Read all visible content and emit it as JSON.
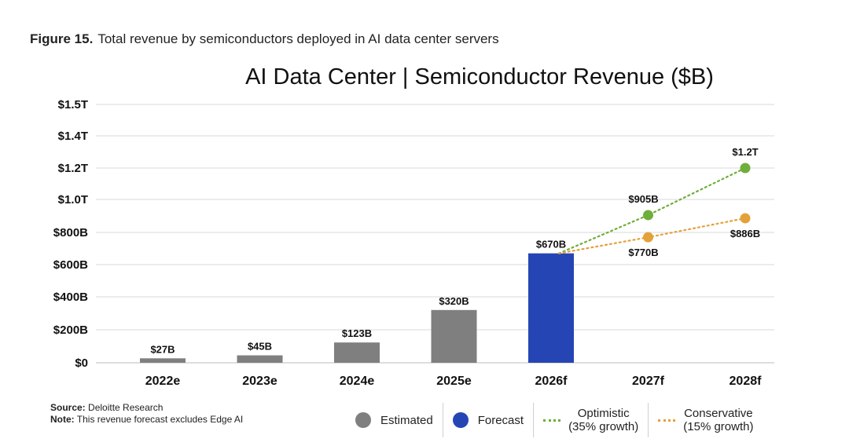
{
  "caption": {
    "figure_number": "Figure 15.",
    "text": "Total revenue by semiconductors deployed in AI data center servers"
  },
  "footnotes": {
    "source_label": "Source:",
    "source_text": "Deloitte Research",
    "note_label": "Note:",
    "note_text": "This revenue forecast excludes Edge AI"
  },
  "legend": {
    "estimated": "Estimated",
    "forecast": "Forecast",
    "optimistic_line1": "Optimistic",
    "optimistic_line2": "(35% growth)",
    "conservative_line1": "Conservative",
    "conservative_line2": "(15% growth)"
  },
  "colors": {
    "estimated": "#7f7f80",
    "forecast": "#2645b5",
    "optimistic": "#6fae3a",
    "conservative": "#e3a13a",
    "grid": "#d9d9d9"
  },
  "chart_data": {
    "type": "bar",
    "title": "AI Data Center | Semiconductor Revenue ($B)",
    "xlabel": "",
    "ylabel": "",
    "grid": true,
    "ylim": [
      0,
      1500
    ],
    "yticks": [
      {
        "value": 0,
        "label": "$0"
      },
      {
        "value": 200,
        "label": "$200B"
      },
      {
        "value": 400,
        "label": "$400B"
      },
      {
        "value": 600,
        "label": "$600B"
      },
      {
        "value": 800,
        "label": "$800B"
      },
      {
        "value": 1000,
        "label": "$1.0T"
      },
      {
        "value": 1200,
        "label": "$1.2T"
      },
      {
        "value": 1400,
        "label": "$1.4T"
      },
      {
        "value": 1500,
        "label": "$1.5T"
      }
    ],
    "categories": [
      "2022e",
      "2023e",
      "2024e",
      "2025e",
      "2026f",
      "2027f",
      "2028f"
    ],
    "bars": [
      {
        "category": "2022e",
        "value": 27,
        "label": "$27B",
        "kind": "estimated"
      },
      {
        "category": "2023e",
        "value": 45,
        "label": "$45B",
        "kind": "estimated"
      },
      {
        "category": "2024e",
        "value": 123,
        "label": "$123B",
        "kind": "estimated"
      },
      {
        "category": "2025e",
        "value": 320,
        "label": "$320B",
        "kind": "estimated"
      },
      {
        "category": "2026f",
        "value": 670,
        "label": "$670B",
        "kind": "forecast"
      }
    ],
    "lines": [
      {
        "name": "Optimistic (35% growth)",
        "kind": "optimistic",
        "points": [
          {
            "category": "2026f",
            "value": 670,
            "label": ""
          },
          {
            "category": "2027f",
            "value": 905,
            "label": "$905B"
          },
          {
            "category": "2028f",
            "value": 1200,
            "label": "$1.2T"
          }
        ]
      },
      {
        "name": "Conservative (15% growth)",
        "kind": "conservative",
        "points": [
          {
            "category": "2026f",
            "value": 670,
            "label": ""
          },
          {
            "category": "2027f",
            "value": 770,
            "label": "$770B"
          },
          {
            "category": "2028f",
            "value": 886,
            "label": "$886B"
          }
        ]
      }
    ],
    "legend_position": "bottom"
  }
}
